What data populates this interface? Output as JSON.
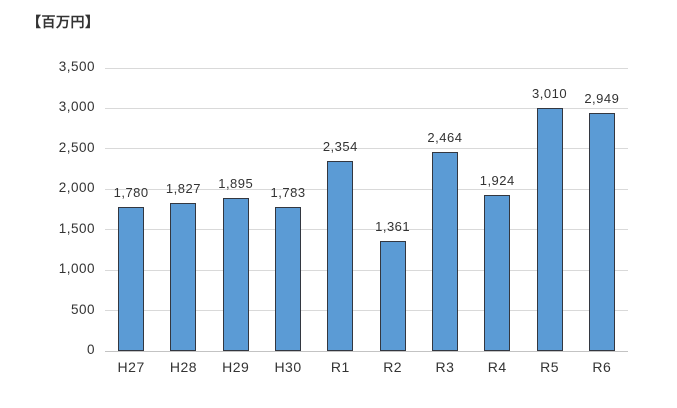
{
  "chart_data": {
    "type": "bar",
    "title": "【百万円】",
    "categories": [
      "H27",
      "H28",
      "H29",
      "H30",
      "R1",
      "R2",
      "R3",
      "R4",
      "R5",
      "R6"
    ],
    "values": [
      1780,
      1827,
      1895,
      1783,
      2354,
      1361,
      2464,
      1924,
      3010,
      2949
    ],
    "value_labels": [
      "1,780",
      "1,827",
      "1,895",
      "1,783",
      "2,354",
      "1,361",
      "2,464",
      "1,924",
      "3,010",
      "2,949"
    ],
    "xlabel": "",
    "ylabel": "",
    "ylim": [
      0,
      3500
    ],
    "ytick_interval": 500,
    "ytick_labels": [
      "0",
      "500",
      "1,000",
      "1,500",
      "2,000",
      "2,500",
      "3,000",
      "3,500"
    ],
    "grid": true,
    "legend": "none",
    "colors": {
      "bar_fill": "#5B9BD5",
      "bar_border": "#333740",
      "gridline": "#D9D9D9",
      "axis_line": "#C3C3C3",
      "text": "#333333",
      "background": "#FFFFFF"
    }
  }
}
